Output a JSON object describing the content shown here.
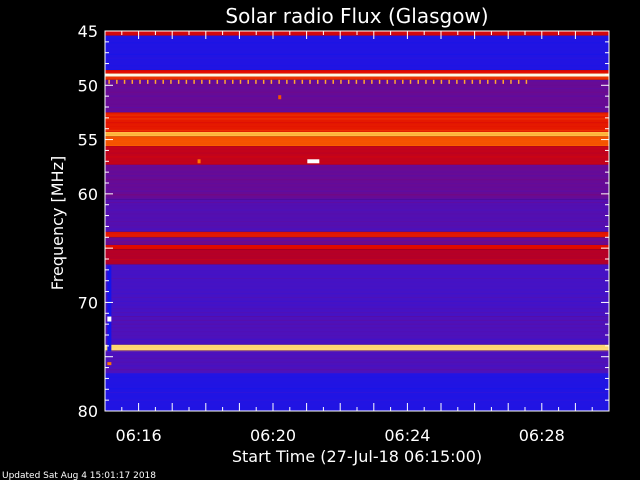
{
  "chart_data": {
    "type": "heatmap",
    "title": "Solar radio Flux (Glasgow)",
    "xlabel": "Start Time (27-Jul-18 06:15:00)",
    "ylabel": "Frequency [MHz]",
    "xlim": [
      "06:15:00",
      "06:30:00"
    ],
    "ylim": [
      45,
      80
    ],
    "y_ticks": [
      45,
      50,
      55,
      60,
      70,
      80
    ],
    "x_ticks": [
      "06:16",
      "06:20",
      "06:24",
      "06:28"
    ],
    "x_tick_values_min": [
      16,
      20,
      24,
      28
    ],
    "colormap": "blue-purple-red-yellow-white",
    "bands": [
      {
        "from": 45.0,
        "to": 45.4,
        "intensity": 0.55
      },
      {
        "from": 45.4,
        "to": 48.6,
        "intensity": 0.05
      },
      {
        "from": 48.6,
        "to": 48.9,
        "intensity": 0.6
      },
      {
        "from": 48.9,
        "to": 49.2,
        "intensity": 0.98
      },
      {
        "from": 49.2,
        "to": 49.5,
        "intensity": 0.65
      },
      {
        "from": 49.5,
        "to": 52.5,
        "intensity": 0.28
      },
      {
        "from": 52.5,
        "to": 54.3,
        "intensity": 0.62
      },
      {
        "from": 54.3,
        "to": 54.7,
        "intensity": 0.85
      },
      {
        "from": 54.7,
        "to": 55.6,
        "intensity": 0.7
      },
      {
        "from": 55.6,
        "to": 57.3,
        "intensity": 0.5
      },
      {
        "from": 57.3,
        "to": 60.5,
        "intensity": 0.28
      },
      {
        "from": 60.5,
        "to": 63.5,
        "intensity": 0.22
      },
      {
        "from": 63.5,
        "to": 64.0,
        "intensity": 0.62
      },
      {
        "from": 64.0,
        "to": 64.7,
        "intensity": 0.3
      },
      {
        "from": 64.7,
        "to": 65.1,
        "intensity": 0.6
      },
      {
        "from": 65.1,
        "to": 66.5,
        "intensity": 0.45
      },
      {
        "from": 66.5,
        "to": 71.3,
        "intensity": 0.18
      },
      {
        "from": 71.3,
        "to": 73.9,
        "intensity": 0.2
      },
      {
        "from": 73.9,
        "to": 74.4,
        "intensity": 0.9
      },
      {
        "from": 74.4,
        "to": 76.5,
        "intensity": 0.2
      },
      {
        "from": 76.5,
        "to": 80.0,
        "intensity": 0.05
      }
    ],
    "features": [
      {
        "time_min": 21.2,
        "freq": 57.0,
        "intensity": 1.0,
        "label": "burst"
      },
      {
        "time_min": 20.2,
        "freq": 51.1,
        "intensity": 0.7,
        "label": "spot"
      },
      {
        "time_min": 17.8,
        "freq": 57.0,
        "intensity": 0.75,
        "label": "spot"
      }
    ]
  },
  "footer": {
    "updated": "Updated Sat Aug  4 15:01:17 2018"
  }
}
